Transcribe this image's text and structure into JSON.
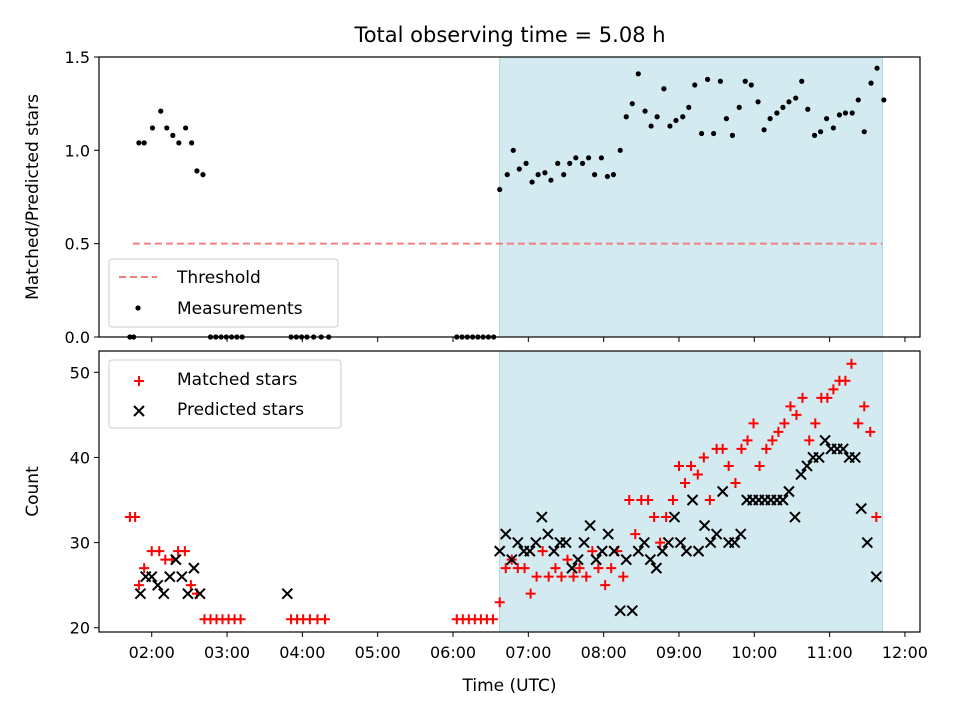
{
  "figure": {
    "title": "Total observing time = 5.08 h"
  },
  "chart_data": [
    {
      "type": "scatter",
      "panel": "top",
      "ylabel": "Matched/Predicted stars",
      "xlabel": "",
      "xlim": [
        1.3,
        12.2
      ],
      "ylim": [
        0,
        1.5
      ],
      "yticks": [
        0.0,
        0.5,
        1.0,
        1.5
      ],
      "ytick_labels": [
        "0.0",
        "0.5",
        "1.0",
        "1.5"
      ],
      "shaded_region": [
        6.62,
        11.7
      ],
      "shade_color": "#d3eaf0",
      "legend_position": "lower-left",
      "threshold": {
        "name": "Threshold",
        "y": 0.5,
        "x_range": [
          1.75,
          11.7
        ],
        "color": "#f08080"
      },
      "series": [
        {
          "name": "Measurements",
          "marker": "dot",
          "color": "#000000",
          "points": [
            [
              1.71,
              0.0
            ],
            [
              1.76,
              0.0
            ],
            [
              1.83,
              1.04
            ],
            [
              1.9,
              1.04
            ],
            [
              2.01,
              1.12
            ],
            [
              2.12,
              1.21
            ],
            [
              2.2,
              1.12
            ],
            [
              2.28,
              1.08
            ],
            [
              2.36,
              1.04
            ],
            [
              2.45,
              1.12
            ],
            [
              2.53,
              1.04
            ],
            [
              2.6,
              0.89
            ],
            [
              2.68,
              0.87
            ],
            [
              2.78,
              0.0
            ],
            [
              2.85,
              0.0
            ],
            [
              2.92,
              0.0
            ],
            [
              2.99,
              0.0
            ],
            [
              3.06,
              0.0
            ],
            [
              3.13,
              0.0
            ],
            [
              3.2,
              0.0
            ],
            [
              3.85,
              0.0
            ],
            [
              3.92,
              0.0
            ],
            [
              3.99,
              0.0
            ],
            [
              4.06,
              0.0
            ],
            [
              4.15,
              0.0
            ],
            [
              4.25,
              0.0
            ],
            [
              4.35,
              0.0
            ],
            [
              6.05,
              0.0
            ],
            [
              6.12,
              0.0
            ],
            [
              6.19,
              0.0
            ],
            [
              6.26,
              0.0
            ],
            [
              6.33,
              0.0
            ],
            [
              6.4,
              0.0
            ],
            [
              6.47,
              0.0
            ],
            [
              6.54,
              0.0
            ],
            [
              6.62,
              0.79
            ],
            [
              6.72,
              0.87
            ],
            [
              6.8,
              1.0
            ],
            [
              6.88,
              0.9
            ],
            [
              6.97,
              0.93
            ],
            [
              7.05,
              0.83
            ],
            [
              7.13,
              0.87
            ],
            [
              7.22,
              0.88
            ],
            [
              7.3,
              0.84
            ],
            [
              7.39,
              0.93
            ],
            [
              7.47,
              0.87
            ],
            [
              7.55,
              0.93
            ],
            [
              7.63,
              0.96
            ],
            [
              7.72,
              0.93
            ],
            [
              7.8,
              0.96
            ],
            [
              7.88,
              0.87
            ],
            [
              7.97,
              0.96
            ],
            [
              8.05,
              0.86
            ],
            [
              8.13,
              0.87
            ],
            [
              8.22,
              1.0
            ],
            [
              8.3,
              1.18
            ],
            [
              8.38,
              1.25
            ],
            [
              8.46,
              1.41
            ],
            [
              8.55,
              1.21
            ],
            [
              8.63,
              1.13
            ],
            [
              8.71,
              1.18
            ],
            [
              8.8,
              1.33
            ],
            [
              8.88,
              1.13
            ],
            [
              8.96,
              1.16
            ],
            [
              9.05,
              1.18
            ],
            [
              9.13,
              1.23
            ],
            [
              9.21,
              1.35
            ],
            [
              9.3,
              1.09
            ],
            [
              9.38,
              1.38
            ],
            [
              9.46,
              1.09
            ],
            [
              9.55,
              1.37
            ],
            [
              9.63,
              1.17
            ],
            [
              9.71,
              1.08
            ],
            [
              9.8,
              1.23
            ],
            [
              9.88,
              1.37
            ],
            [
              9.96,
              1.35
            ],
            [
              10.05,
              1.26
            ],
            [
              10.13,
              1.11
            ],
            [
              10.21,
              1.17
            ],
            [
              10.3,
              1.2
            ],
            [
              10.38,
              1.23
            ],
            [
              10.46,
              1.26
            ],
            [
              10.55,
              1.28
            ],
            [
              10.63,
              1.37
            ],
            [
              10.71,
              1.22
            ],
            [
              10.8,
              1.08
            ],
            [
              10.88,
              1.1
            ],
            [
              10.96,
              1.17
            ],
            [
              11.05,
              1.12
            ],
            [
              11.13,
              1.19
            ],
            [
              11.21,
              1.2
            ],
            [
              11.3,
              1.2
            ],
            [
              11.38,
              1.27
            ],
            [
              11.46,
              1.1
            ],
            [
              11.55,
              1.36
            ],
            [
              11.63,
              1.44
            ],
            [
              11.72,
              1.27
            ]
          ]
        }
      ]
    },
    {
      "type": "scatter",
      "panel": "bottom",
      "xlabel": "Time (UTC)",
      "ylabel": "Count",
      "xlim": [
        1.3,
        12.2
      ],
      "ylim": [
        19.5,
        52.5
      ],
      "xticks": [
        2,
        3,
        4,
        5,
        6,
        7,
        8,
        9,
        10,
        11,
        12
      ],
      "xtick_labels": [
        "02:00",
        "03:00",
        "04:00",
        "05:00",
        "06:00",
        "07:00",
        "08:00",
        "09:00",
        "10:00",
        "11:00",
        "12:00"
      ],
      "yticks": [
        20,
        30,
        40,
        50
      ],
      "ytick_labels": [
        "20",
        "30",
        "40",
        "50"
      ],
      "shaded_region": [
        6.62,
        11.7
      ],
      "shade_color": "#d3eaf0",
      "legend_position": "upper-left",
      "series": [
        {
          "name": "Matched stars",
          "marker": "plus",
          "color": "#ff0000",
          "points": [
            [
              1.71,
              33
            ],
            [
              1.78,
              33
            ],
            [
              1.83,
              25
            ],
            [
              1.9,
              27
            ],
            [
              2.0,
              29
            ],
            [
              2.1,
              29
            ],
            [
              2.18,
              28
            ],
            [
              2.27,
              28
            ],
            [
              2.35,
              29
            ],
            [
              2.44,
              29
            ],
            [
              2.52,
              25
            ],
            [
              2.6,
              24
            ],
            [
              2.7,
              21
            ],
            [
              2.78,
              21
            ],
            [
              2.86,
              21
            ],
            [
              2.94,
              21
            ],
            [
              3.02,
              21
            ],
            [
              3.1,
              21
            ],
            [
              3.18,
              21
            ],
            [
              3.85,
              21
            ],
            [
              3.93,
              21
            ],
            [
              4.01,
              21
            ],
            [
              4.1,
              21
            ],
            [
              4.2,
              21
            ],
            [
              4.3,
              21
            ],
            [
              6.05,
              21
            ],
            [
              6.13,
              21
            ],
            [
              6.21,
              21
            ],
            [
              6.29,
              21
            ],
            [
              6.37,
              21
            ],
            [
              6.45,
              21
            ],
            [
              6.53,
              21
            ],
            [
              6.62,
              23
            ],
            [
              6.7,
              27
            ],
            [
              6.78,
              28
            ],
            [
              6.86,
              27
            ],
            [
              6.95,
              27
            ],
            [
              7.03,
              24
            ],
            [
              7.11,
              26
            ],
            [
              7.19,
              29
            ],
            [
              7.27,
              26
            ],
            [
              7.36,
              27
            ],
            [
              7.44,
              26
            ],
            [
              7.52,
              28
            ],
            [
              7.6,
              26
            ],
            [
              7.68,
              27
            ],
            [
              7.77,
              26
            ],
            [
              7.85,
              29
            ],
            [
              7.93,
              27
            ],
            [
              8.02,
              25
            ],
            [
              8.1,
              27
            ],
            [
              8.18,
              29
            ],
            [
              8.26,
              26
            ],
            [
              8.34,
              35
            ],
            [
              8.42,
              31
            ],
            [
              8.5,
              35
            ],
            [
              8.59,
              35
            ],
            [
              8.67,
              33
            ],
            [
              8.75,
              30
            ],
            [
              8.83,
              33
            ],
            [
              8.92,
              35
            ],
            [
              9.0,
              39
            ],
            [
              9.08,
              37
            ],
            [
              9.16,
              39
            ],
            [
              9.25,
              38
            ],
            [
              9.33,
              40
            ],
            [
              9.41,
              35
            ],
            [
              9.5,
              41
            ],
            [
              9.58,
              41
            ],
            [
              9.66,
              39
            ],
            [
              9.75,
              37
            ],
            [
              9.83,
              41
            ],
            [
              9.91,
              42
            ],
            [
              9.99,
              44
            ],
            [
              10.07,
              39
            ],
            [
              10.16,
              41
            ],
            [
              10.24,
              42
            ],
            [
              10.32,
              43
            ],
            [
              10.4,
              44
            ],
            [
              10.48,
              46
            ],
            [
              10.56,
              45
            ],
            [
              10.64,
              47
            ],
            [
              10.73,
              42
            ],
            [
              10.81,
              44
            ],
            [
              10.89,
              47
            ],
            [
              10.97,
              47
            ],
            [
              11.05,
              48
            ],
            [
              11.13,
              49
            ],
            [
              11.21,
              49
            ],
            [
              11.29,
              51
            ],
            [
              11.38,
              44
            ],
            [
              11.46,
              46
            ],
            [
              11.54,
              43
            ],
            [
              11.62,
              33
            ]
          ]
        },
        {
          "name": "Predicted stars",
          "marker": "x",
          "color": "#000000",
          "points": [
            [
              1.85,
              24
            ],
            [
              1.92,
              26
            ],
            [
              2.0,
              26
            ],
            [
              2.08,
              25
            ],
            [
              2.16,
              24
            ],
            [
              2.24,
              26
            ],
            [
              2.32,
              28
            ],
            [
              2.4,
              26
            ],
            [
              2.48,
              24
            ],
            [
              2.56,
              27
            ],
            [
              2.64,
              24
            ],
            [
              3.8,
              24
            ],
            [
              6.62,
              29
            ],
            [
              6.7,
              31
            ],
            [
              6.78,
              28
            ],
            [
              6.86,
              30
            ],
            [
              6.94,
              29
            ],
            [
              7.02,
              29
            ],
            [
              7.1,
              30
            ],
            [
              7.18,
              33
            ],
            [
              7.26,
              31
            ],
            [
              7.34,
              29
            ],
            [
              7.42,
              30
            ],
            [
              7.5,
              30
            ],
            [
              7.58,
              27
            ],
            [
              7.66,
              28
            ],
            [
              7.74,
              30
            ],
            [
              7.82,
              32
            ],
            [
              7.9,
              28
            ],
            [
              7.98,
              29
            ],
            [
              8.06,
              31
            ],
            [
              8.14,
              29
            ],
            [
              8.22,
              22
            ],
            [
              8.3,
              28
            ],
            [
              8.38,
              22
            ],
            [
              8.46,
              29
            ],
            [
              8.54,
              30
            ],
            [
              8.62,
              28
            ],
            [
              8.7,
              27
            ],
            [
              8.78,
              29
            ],
            [
              8.86,
              30
            ],
            [
              8.94,
              33
            ],
            [
              9.02,
              30
            ],
            [
              9.1,
              29
            ],
            [
              9.18,
              35
            ],
            [
              9.26,
              29
            ],
            [
              9.34,
              32
            ],
            [
              9.42,
              30
            ],
            [
              9.5,
              31
            ],
            [
              9.58,
              36
            ],
            [
              9.66,
              30
            ],
            [
              9.74,
              30
            ],
            [
              9.82,
              31
            ],
            [
              9.9,
              35
            ],
            [
              9.98,
              35
            ],
            [
              10.06,
              35
            ],
            [
              10.14,
              35
            ],
            [
              10.22,
              35
            ],
            [
              10.3,
              35
            ],
            [
              10.38,
              35
            ],
            [
              10.46,
              36
            ],
            [
              10.54,
              33
            ],
            [
              10.62,
              38
            ],
            [
              10.7,
              39
            ],
            [
              10.78,
              40
            ],
            [
              10.86,
              40
            ],
            [
              10.94,
              42
            ],
            [
              11.02,
              41
            ],
            [
              11.1,
              41
            ],
            [
              11.18,
              41
            ],
            [
              11.26,
              40
            ],
            [
              11.34,
              40
            ],
            [
              11.42,
              34
            ],
            [
              11.5,
              30
            ],
            [
              11.62,
              26
            ]
          ]
        }
      ]
    }
  ]
}
